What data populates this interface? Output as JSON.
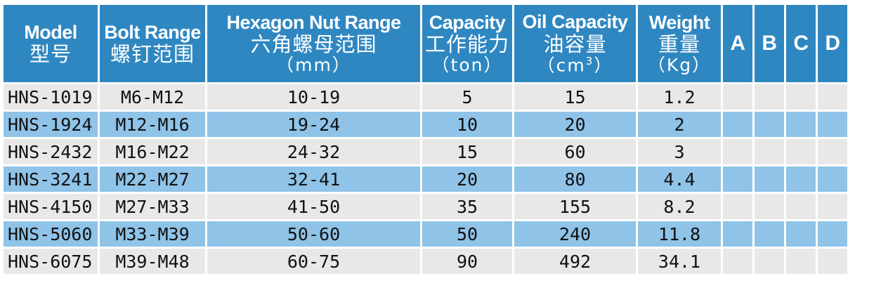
{
  "headers": [
    {
      "en": "Model",
      "zh": "型号",
      "unit": ""
    },
    {
      "en": "Bolt Range",
      "zh": "螺钉范围",
      "unit": ""
    },
    {
      "en": "Hexagon Nut Range",
      "zh": "六角螺母范围",
      "unit": "（mm）"
    },
    {
      "en": "Capacity",
      "zh": "工作能力",
      "unit": "（ton）"
    },
    {
      "en": "Oil Capacity",
      "zh": "油容量",
      "unit_base": "（cm",
      "unit_sup": "3",
      "unit_end": "）"
    },
    {
      "en": "Weight",
      "zh": "重量",
      "unit": "（Kg）"
    },
    {
      "en": "A"
    },
    {
      "en": "B"
    },
    {
      "en": "C"
    },
    {
      "en": "D"
    }
  ],
  "rows": [
    {
      "model": "HNS-1019",
      "bolt": "M6-M12",
      "nut": "10-19",
      "capacity": "5",
      "oil": "15",
      "weight": "1.2",
      "a": "",
      "b": "",
      "c": "",
      "d": ""
    },
    {
      "model": "HNS-1924",
      "bolt": "M12-M16",
      "nut": "19-24",
      "capacity": "10",
      "oil": "20",
      "weight": "2",
      "a": "",
      "b": "",
      "c": "",
      "d": ""
    },
    {
      "model": "HNS-2432",
      "bolt": "M16-M22",
      "nut": "24-32",
      "capacity": "15",
      "oil": "60",
      "weight": "3",
      "a": "",
      "b": "",
      "c": "",
      "d": ""
    },
    {
      "model": "HNS-3241",
      "bolt": "M22-M27",
      "nut": "32-41",
      "capacity": "20",
      "oil": "80",
      "weight": "4.4",
      "a": "",
      "b": "",
      "c": "",
      "d": ""
    },
    {
      "model": "HNS-4150",
      "bolt": "M27-M33",
      "nut": "41-50",
      "capacity": "35",
      "oil": "155",
      "weight": "8.2",
      "a": "",
      "b": "",
      "c": "",
      "d": ""
    },
    {
      "model": "HNS-5060",
      "bolt": "M33-M39",
      "nut": "50-60",
      "capacity": "50",
      "oil": "240",
      "weight": "11.8",
      "a": "",
      "b": "",
      "c": "",
      "d": ""
    },
    {
      "model": "HNS-6075",
      "bolt": "M39-M48",
      "nut": "60-75",
      "capacity": "90",
      "oil": "492",
      "weight": "34.1",
      "a": "",
      "b": "",
      "c": "",
      "d": ""
    }
  ],
  "colors": {
    "header_bg": "#2f87c1",
    "header_text": "#ffffff",
    "row_gray": "#e8e8e8",
    "row_blue": "#8fc3e8"
  }
}
